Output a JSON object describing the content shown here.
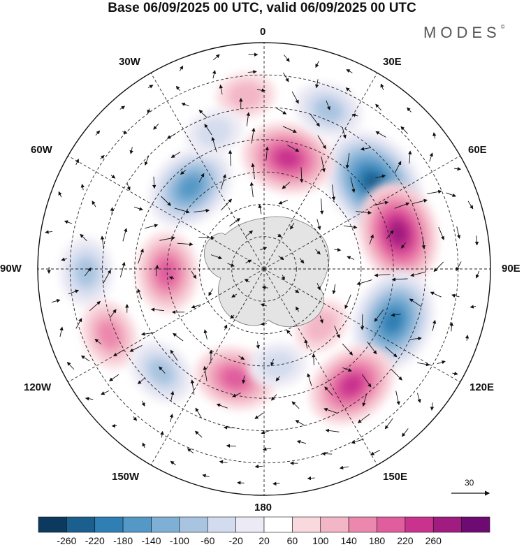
{
  "title": "Base 06/09/2025 00 UTC, valid 06/09/2025 00 UTC",
  "logo": "MODES",
  "logo_mark": "©",
  "lon_labels": {
    "deg0": "0",
    "deg30e": "30E",
    "deg60e": "60E",
    "deg90e": "90E",
    "deg120e": "120E",
    "deg150e": "150E",
    "deg180": "180",
    "deg150w": "150W",
    "deg120w": "120W",
    "deg90w": "90W",
    "deg60w": "60W",
    "deg30w": "30W"
  },
  "reference_vector": "30",
  "colorbar": {
    "colors": [
      "#0b3a5e",
      "#1b5f8f",
      "#2f7fb4",
      "#5498c6",
      "#7eafd4",
      "#a9c4e0",
      "#d3dcee",
      "#eceaf4",
      "#ffffff",
      "#f9d8de",
      "#f3b6c6",
      "#ec88ad",
      "#e05d9e",
      "#c9338d",
      "#a01c80",
      "#6e0b73"
    ],
    "ticks": [
      "-260",
      "-220",
      "-180",
      "-140",
      "-100",
      "-60",
      "-20",
      "20",
      "60",
      "100",
      "140",
      "180",
      "220",
      "260"
    ]
  },
  "anomalies": [
    {
      "sign": "neg",
      "lon": 52,
      "lat": -47,
      "intensity": 7
    },
    {
      "sign": "pos",
      "lon": 75,
      "lat": -47,
      "intensity": 6
    },
    {
      "sign": "neg",
      "lon": 112,
      "lat": -47,
      "intensity": 6
    },
    {
      "sign": "pos",
      "lon": 143,
      "lat": -45,
      "intensity": 5
    },
    {
      "sign": "pos",
      "lon": 12,
      "lat": -55,
      "intensity": 5
    },
    {
      "sign": "neg",
      "lon": -42,
      "lat": -56,
      "intensity": 5
    },
    {
      "sign": "neg",
      "lon": 22,
      "lat": -37,
      "intensity": 3
    },
    {
      "sign": "pos",
      "lon": -92,
      "lat": -60,
      "intensity": 4
    },
    {
      "sign": "neg",
      "lon": -91,
      "lat": -35,
      "intensity": 3
    },
    {
      "sign": "pos",
      "lon": -113,
      "lat": -38,
      "intensity": 3
    },
    {
      "sign": "neg",
      "lon": -135,
      "lat": -45,
      "intensity": 3
    },
    {
      "sign": "pos",
      "lon": -165,
      "lat": -55,
      "intensity": 4
    },
    {
      "sign": "neg",
      "lon": 172,
      "lat": -60,
      "intensity": 2
    },
    {
      "sign": "pos",
      "lon": 135,
      "lat": -65,
      "intensity": 2
    },
    {
      "sign": "pos",
      "lon": -6,
      "lat": -36,
      "intensity": 2
    },
    {
      "sign": "neg",
      "lon": -20,
      "lat": -45,
      "intensity": 2
    }
  ]
}
